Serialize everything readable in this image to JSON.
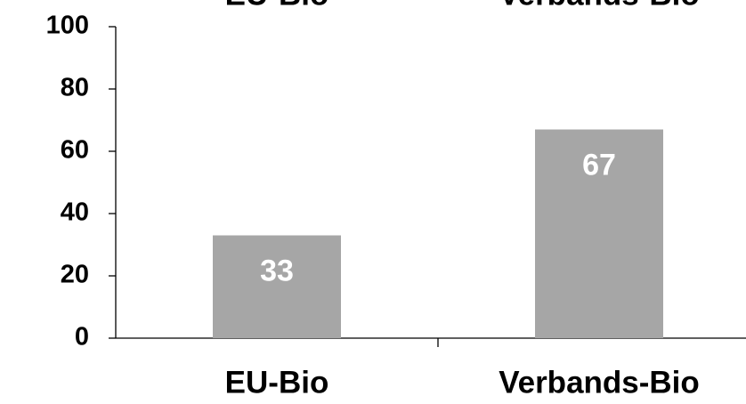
{
  "chart_data": {
    "type": "bar",
    "categories": [
      "EU-Bio",
      "Verbands-Bio"
    ],
    "values": [
      33,
      67
    ],
    "color": "#a6a6a6",
    "value_label_color": "#ffffff",
    "ylim": [
      0,
      100
    ],
    "yticks": [
      0,
      20,
      40,
      60,
      80,
      100
    ],
    "grid": false
  }
}
